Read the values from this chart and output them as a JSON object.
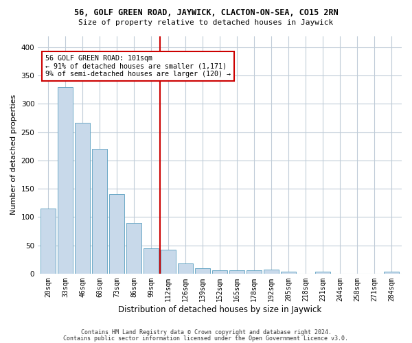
{
  "title1": "56, GOLF GREEN ROAD, JAYWICK, CLACTON-ON-SEA, CO15 2RN",
  "title2": "Size of property relative to detached houses in Jaywick",
  "xlabel": "Distribution of detached houses by size in Jaywick",
  "ylabel": "Number of detached properties",
  "footnote1": "Contains HM Land Registry data © Crown copyright and database right 2024.",
  "footnote2": "Contains public sector information licensed under the Open Government Licence v3.0.",
  "annotation_line1": "56 GOLF GREEN ROAD: 101sqm",
  "annotation_line2": "← 91% of detached houses are smaller (1,171)",
  "annotation_line3": "9% of semi-detached houses are larger (120) →",
  "bar_color": "#c8d9ea",
  "bar_edge_color": "#5a9fc0",
  "vline_color": "#cc0000",
  "annotation_box_edge_color": "#cc0000",
  "background_color": "#ffffff",
  "grid_color": "#c0ccd8",
  "categories": [
    "20sqm",
    "33sqm",
    "46sqm",
    "60sqm",
    "73sqm",
    "86sqm",
    "99sqm",
    "112sqm",
    "126sqm",
    "139sqm",
    "152sqm",
    "165sqm",
    "178sqm",
    "192sqm",
    "205sqm",
    "218sqm",
    "231sqm",
    "244sqm",
    "258sqm",
    "271sqm",
    "284sqm"
  ],
  "values": [
    115,
    330,
    267,
    221,
    140,
    90,
    45,
    42,
    18,
    9,
    6,
    6,
    6,
    7,
    3,
    0,
    4,
    0,
    0,
    0,
    4
  ],
  "vline_x_index": 6.5,
  "ylim": [
    0,
    420
  ],
  "yticks": [
    0,
    50,
    100,
    150,
    200,
    250,
    300,
    350,
    400
  ]
}
